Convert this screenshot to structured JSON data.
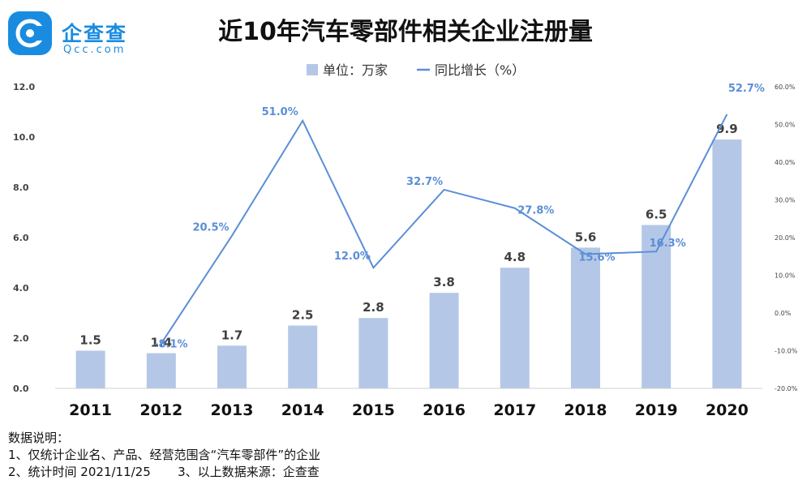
{
  "brand": {
    "name": "企查查",
    "sub": "Qcc.com"
  },
  "chart_data": {
    "type": "bar+line",
    "title": "近10年汽车零部件相关企业注册量",
    "categories": [
      "2011",
      "2012",
      "2013",
      "2014",
      "2015",
      "2016",
      "2017",
      "2018",
      "2019",
      "2020"
    ],
    "series": [
      {
        "name": "单位：万家",
        "type": "bar",
        "color": "#b4c7e7",
        "values": [
          1.5,
          1.4,
          1.7,
          2.5,
          2.8,
          3.8,
          4.8,
          5.6,
          6.5,
          9.9
        ],
        "labels": [
          "1.5",
          "1.4",
          "1.7",
          "2.5",
          "2.8",
          "3.8",
          "4.8",
          "5.6",
          "6.5",
          "9.9"
        ]
      },
      {
        "name": "同比增长（%）",
        "type": "line",
        "color": "#5b8ed6",
        "axis": "right",
        "values": [
          null,
          -8.1,
          20.5,
          51.0,
          12.0,
          32.7,
          27.8,
          15.6,
          16.3,
          52.7
        ],
        "labels": [
          "",
          "-8.1%",
          "20.5%",
          "51.0%",
          "12.0%",
          "32.7%",
          "27.8%",
          "15.6%",
          "16.3%",
          "52.7%"
        ]
      }
    ],
    "y_left": {
      "min": 0,
      "max": 12,
      "ticks": [
        "0.0",
        "2.0",
        "4.0",
        "6.0",
        "8.0",
        "10.0",
        "12.0"
      ]
    },
    "y_right": {
      "min": -20,
      "max": 60,
      "ticks": [
        "-20.0%",
        "-10.0%",
        "0.0%",
        "10.0%",
        "20.0%",
        "30.0%",
        "40.0%",
        "50.0%",
        "60.0%"
      ]
    },
    "legend": {
      "position": "top-center"
    },
    "grid": false
  },
  "notes": {
    "heading": "数据说明：",
    "line1": "1、仅统计企业名、产品、经营范围含“汽车零部件”的企业",
    "line2": "2、统计时间 2021/11/25       3、以上数据来源：企查查"
  }
}
